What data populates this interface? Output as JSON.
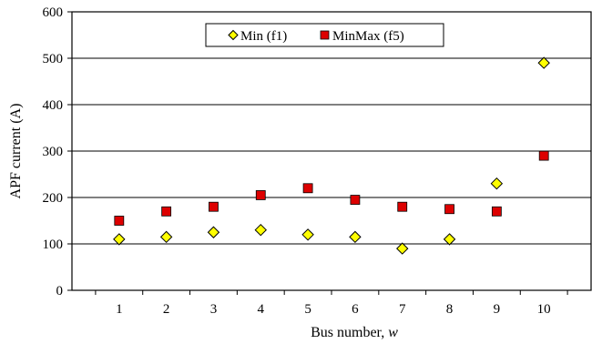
{
  "chart_data": {
    "type": "scatter",
    "xlabel": "Bus  number, ",
    "xlabel_var": "w",
    "ylabel": "APF current (A)",
    "x": [
      1,
      2,
      3,
      4,
      5,
      6,
      7,
      8,
      9,
      10
    ],
    "xticks": [
      "1",
      "2",
      "3",
      "4",
      "5",
      "6",
      "7",
      "8",
      "9",
      "10"
    ],
    "xlim": [
      0,
      11
    ],
    "ylim": [
      0,
      600
    ],
    "yticks": [
      "0",
      "100",
      "200",
      "300",
      "400",
      "500",
      "600"
    ],
    "grid": "horizontal",
    "legend_position": "top-center",
    "series": [
      {
        "name": "Min (f1)",
        "marker": "diamond",
        "color": "#ffff00",
        "values": [
          110,
          115,
          125,
          130,
          120,
          115,
          90,
          110,
          230,
          490
        ]
      },
      {
        "name": "MinMax (f5)",
        "marker": "square",
        "color": "#dd0000",
        "values": [
          150,
          170,
          180,
          205,
          220,
          195,
          180,
          175,
          170,
          290
        ]
      }
    ]
  }
}
